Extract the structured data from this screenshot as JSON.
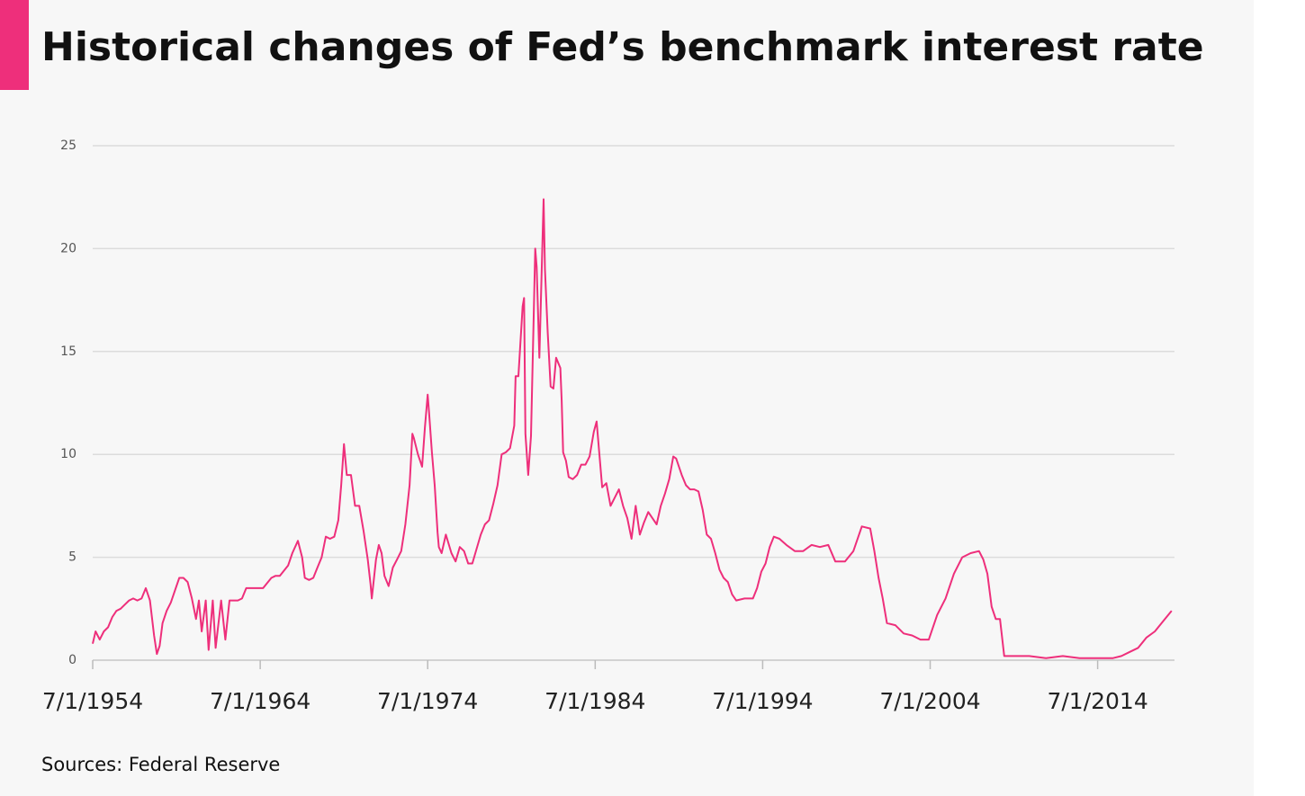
{
  "chart_data": {
    "type": "line",
    "title": "Historical changes of Fed’s benchmark interest rate",
    "source": "Sources: Federal Reserve",
    "color": "#ee2f7b",
    "grid": true,
    "x": [
      "1954-07-01",
      "1954-09-01",
      "1954-12-01",
      "1955-03-01",
      "1955-06-01",
      "1955-09-01",
      "1955-12-01",
      "1956-03-01",
      "1956-06-01",
      "1956-09-01",
      "1956-12-01",
      "1957-03-01",
      "1957-06-01",
      "1957-09-01",
      "1957-12-01",
      "1958-03-01",
      "1958-05-01",
      "1958-07-01",
      "1958-09-01",
      "1958-12-01",
      "1959-03-01",
      "1959-06-01",
      "1959-09-01",
      "1959-12-01",
      "1960-03-01",
      "1960-06-01",
      "1960-09-01",
      "1960-11-01",
      "1961-01-01",
      "1961-04-01",
      "1961-06-01",
      "1961-09-01",
      "1961-11-01",
      "1962-03-01",
      "1962-06-01",
      "1962-09-01",
      "1962-12-01",
      "1963-03-01",
      "1963-06-01",
      "1963-09-01",
      "1964-03-01",
      "1964-09-01",
      "1965-03-01",
      "1965-06-01",
      "1965-09-01",
      "1966-03-01",
      "1966-06-01",
      "1966-10-01",
      "1967-01-01",
      "1967-03-01",
      "1967-06-01",
      "1967-09-01",
      "1967-12-01",
      "1968-03-01",
      "1968-06-01",
      "1968-09-01",
      "1968-12-01",
      "1969-03-01",
      "1969-05-01",
      "1969-07-01",
      "1969-09-01",
      "1969-12-01",
      "1970-03-01",
      "1970-06-01",
      "1970-09-01",
      "1970-12-01",
      "1971-02-01",
      "1971-03-01",
      "1971-06-01",
      "1971-08-01",
      "1971-10-01",
      "1971-12-01",
      "1972-03-01",
      "1972-06-01",
      "1972-09-01",
      "1972-12-01",
      "1973-03-01",
      "1973-06-01",
      "1973-08-01",
      "1973-09-01",
      "1973-12-01",
      "1974-03-01",
      "1974-05-01",
      "1974-07-01",
      "1974-08-01",
      "1974-10-01",
      "1974-12-01",
      "1975-02-01",
      "1975-03-01",
      "1975-05-01",
      "1975-08-01",
      "1975-12-01",
      "1976-03-01",
      "1976-06-01",
      "1976-09-01",
      "1976-12-01",
      "1977-03-01",
      "1977-06-01",
      "1977-09-01",
      "1977-12-01",
      "1978-03-01",
      "1978-06-01",
      "1978-09-01",
      "1978-12-01",
      "1979-03-01",
      "1979-06-01",
      "1979-09-01",
      "1979-10-01",
      "1979-12-01",
      "1980-03-01",
      "1980-04-01",
      "1980-05-01",
      "1980-07-01",
      "1980-09-01",
      "1980-12-01",
      "1981-01-01",
      "1981-03-01",
      "1981-06-01",
      "1981-07-01",
      "1981-09-01",
      "1981-11-01",
      "1982-01-01",
      "1982-03-01",
      "1982-06-01",
      "1982-07-01",
      "1982-08-01",
      "1982-10-01",
      "1982-12-01",
      "1983-03-01",
      "1983-06-01",
      "1983-09-01",
      "1983-12-01",
      "1984-03-01",
      "1984-06-01",
      "1984-08-01",
      "1984-10-01",
      "1984-12-01",
      "1985-03-01",
      "1985-06-01",
      "1985-09-01",
      "1985-12-01",
      "1986-03-01",
      "1986-06-01",
      "1986-09-01",
      "1986-12-01",
      "1987-03-01",
      "1987-06-01",
      "1987-09-01",
      "1987-12-01",
      "1988-03-01",
      "1988-06-01",
      "1988-09-01",
      "1988-12-01",
      "1989-03-01",
      "1989-05-01",
      "1989-09-01",
      "1989-12-01",
      "1990-03-01",
      "1990-06-01",
      "1990-09-01",
      "1990-12-01",
      "1991-03-01",
      "1991-06-01",
      "1991-09-01",
      "1991-12-01",
      "1992-03-01",
      "1992-06-01",
      "1992-09-01",
      "1992-12-01",
      "1993-06-01",
      "1993-12-01",
      "1994-03-01",
      "1994-06-01",
      "1994-09-01",
      "1994-12-01",
      "1995-03-01",
      "1995-07-01",
      "1995-12-01",
      "1996-06-01",
      "1996-12-01",
      "1997-06-01",
      "1997-12-01",
      "1998-06-01",
      "1998-11-01",
      "1999-06-01",
      "1999-12-01",
      "2000-06-01",
      "2000-12-01",
      "2001-03-01",
      "2001-06-01",
      "2001-09-01",
      "2001-12-01",
      "2002-06-01",
      "2002-12-01",
      "2003-06-01",
      "2003-12-01",
      "2004-06-01",
      "2004-12-01",
      "2005-06-01",
      "2005-12-01",
      "2006-06-01",
      "2006-12-01",
      "2007-06-01",
      "2007-09-01",
      "2007-12-01",
      "2008-03-01",
      "2008-06-01",
      "2008-09-01",
      "2008-12-01",
      "2009-06-01",
      "2010-06-01",
      "2011-06-01",
      "2012-06-01",
      "2013-06-01",
      "2014-06-01",
      "2015-06-01",
      "2015-12-01",
      "2016-06-01",
      "2016-12-01",
      "2017-06-01",
      "2017-12-01",
      "2018-06-01",
      "2018-12-01"
    ],
    "values": [
      0.8,
      1.4,
      1.0,
      1.4,
      1.6,
      2.1,
      2.4,
      2.5,
      2.7,
      2.9,
      3.0,
      2.9,
      3.0,
      3.5,
      2.9,
      1.2,
      0.3,
      0.7,
      1.8,
      2.4,
      2.8,
      3.4,
      4.0,
      4.0,
      3.8,
      3.0,
      2.0,
      2.9,
      1.4,
      2.9,
      0.5,
      2.9,
      0.6,
      2.9,
      1.0,
      2.9,
      2.9,
      2.9,
      3.0,
      3.5,
      3.5,
      3.5,
      4.0,
      4.1,
      4.1,
      4.6,
      5.2,
      5.8,
      5.0,
      4.0,
      3.9,
      4.0,
      4.5,
      5.0,
      6.0,
      5.9,
      6.0,
      6.8,
      8.5,
      10.5,
      9.0,
      9.0,
      7.5,
      7.5,
      6.3,
      4.9,
      3.7,
      3.0,
      4.9,
      5.6,
      5.2,
      4.1,
      3.6,
      4.5,
      4.9,
      5.3,
      6.6,
      8.5,
      11.0,
      10.8,
      10.0,
      9.4,
      11.3,
      12.9,
      12.0,
      10.1,
      8.5,
      6.2,
      5.5,
      5.2,
      6.1,
      5.2,
      4.8,
      5.5,
      5.3,
      4.7,
      4.7,
      5.4,
      6.1,
      6.6,
      6.8,
      7.6,
      8.5,
      10.0,
      10.1,
      10.3,
      11.4,
      13.8,
      13.8,
      17.2,
      17.6,
      11.0,
      9.0,
      10.9,
      20.0,
      19.1,
      14.7,
      22.4,
      19.0,
      15.9,
      13.3,
      13.2,
      14.7,
      14.2,
      12.6,
      10.1,
      9.7,
      8.9,
      8.8,
      9.0,
      9.5,
      9.5,
      9.9,
      11.1,
      11.6,
      10.0,
      8.4,
      8.6,
      7.5,
      7.9,
      8.3,
      7.5,
      6.9,
      5.9,
      7.5,
      6.1,
      6.7,
      7.2,
      6.9,
      6.6,
      7.5,
      8.1,
      8.8,
      9.9,
      9.8,
      9.0,
      8.5,
      8.3,
      8.3,
      8.2,
      7.3,
      6.1,
      5.9,
      5.2,
      4.4,
      4.0,
      3.8,
      3.2,
      2.9,
      3.0,
      3.0,
      3.5,
      4.3,
      4.7,
      5.5,
      6.0,
      5.9,
      5.6,
      5.3,
      5.3,
      5.6,
      5.5,
      5.6,
      4.8,
      4.8,
      5.3,
      6.5,
      6.4,
      5.3,
      4.0,
      3.0,
      1.8,
      1.7,
      1.3,
      1.2,
      1.0,
      1.0,
      2.2,
      3.0,
      4.2,
      5.0,
      5.2,
      5.3,
      4.9,
      4.2,
      2.6,
      2.0,
      2.0,
      0.2,
      0.2,
      0.2,
      0.1,
      0.2,
      0.1,
      0.1,
      0.1,
      0.2,
      0.4,
      0.6,
      1.1,
      1.4,
      1.9,
      2.4
    ],
    "xlim": [
      "1954-07-01",
      "2019-02-01"
    ],
    "xticks": [
      {
        "value": "1954-07-01",
        "label": "7/1/1954"
      },
      {
        "value": "1964-07-01",
        "label": "7/1/1964"
      },
      {
        "value": "1974-07-01",
        "label": "7/1/1974"
      },
      {
        "value": "1984-07-01",
        "label": "7/1/1984"
      },
      {
        "value": "1994-07-01",
        "label": "7/1/1994"
      },
      {
        "value": "2004-07-01",
        "label": "7/1/2004"
      },
      {
        "value": "2014-07-01",
        "label": "7/1/2014"
      }
    ],
    "ylim": [
      0,
      25
    ],
    "yticks": [
      0,
      5,
      10,
      15,
      20,
      25
    ]
  }
}
